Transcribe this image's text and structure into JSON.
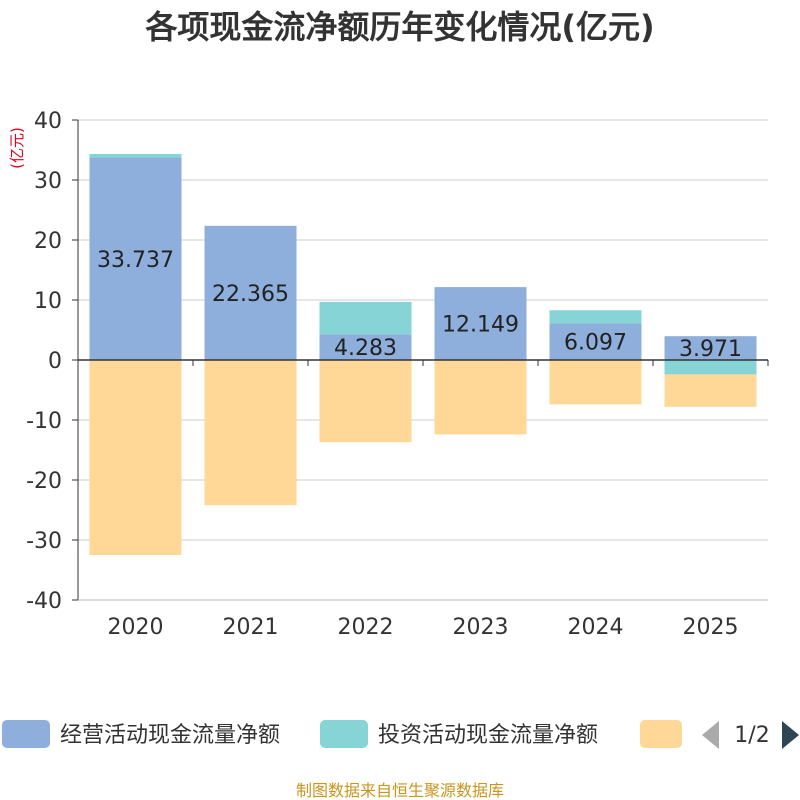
{
  "chart_data": {
    "type": "bar",
    "stacked": true,
    "title": "各项现金流净额历年变化情况(亿元)",
    "ylabel": "(亿元)",
    "xlabel": "",
    "categories": [
      "2020",
      "2021",
      "2022",
      "2023",
      "2024",
      "2025"
    ],
    "ylim": [
      -40,
      40
    ],
    "yticks": [
      40,
      30,
      20,
      10,
      0,
      -10,
      -20,
      -30,
      -40
    ],
    "grid": true,
    "series": [
      {
        "name": "经营活动现金流量净额",
        "color": "#8eaedb",
        "values": [
          33.737,
          22.365,
          4.283,
          12.149,
          6.097,
          3.971
        ],
        "labels": [
          "33.737",
          "22.365",
          "4.283",
          "12.149",
          "6.097",
          "3.971"
        ]
      },
      {
        "name": "投资活动现金流量净额",
        "color": "#86d4d6",
        "values": [
          0.6,
          0,
          5.4,
          0,
          2.2,
          -2.4
        ]
      },
      {
        "name": "",
        "color": "#ffd797",
        "values": [
          -32.5,
          -24.2,
          -13.7,
          -12.4,
          -7.4,
          -5.4
        ]
      }
    ],
    "legend_position": "bottom"
  },
  "legend": {
    "pager": "1/2",
    "prev_icon": "triangle-left-icon",
    "next_icon": "triangle-right-icon"
  },
  "source": "制图数据来自恒生聚源数据库"
}
